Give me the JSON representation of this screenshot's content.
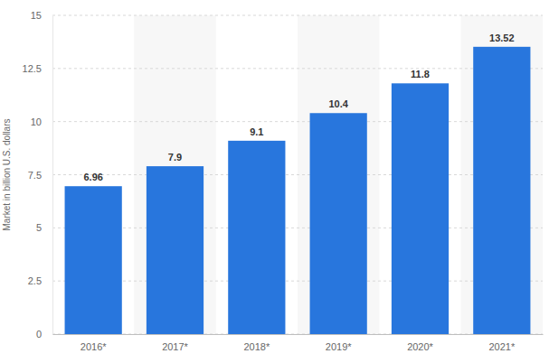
{
  "chart_data": {
    "type": "bar",
    "y_label": "Market in billion U.S. dollars",
    "categories": [
      "2016*",
      "2017*",
      "2018*",
      "2019*",
      "2020*",
      "2021*"
    ],
    "values": [
      6.96,
      7.9,
      9.1,
      10.4,
      11.8,
      13.52
    ],
    "color": "#2876dd",
    "ylim": [
      0,
      15
    ],
    "yticks": [
      0,
      2.5,
      5,
      7.5,
      10,
      12.5,
      15
    ],
    "grid": true,
    "data_labels": true
  }
}
